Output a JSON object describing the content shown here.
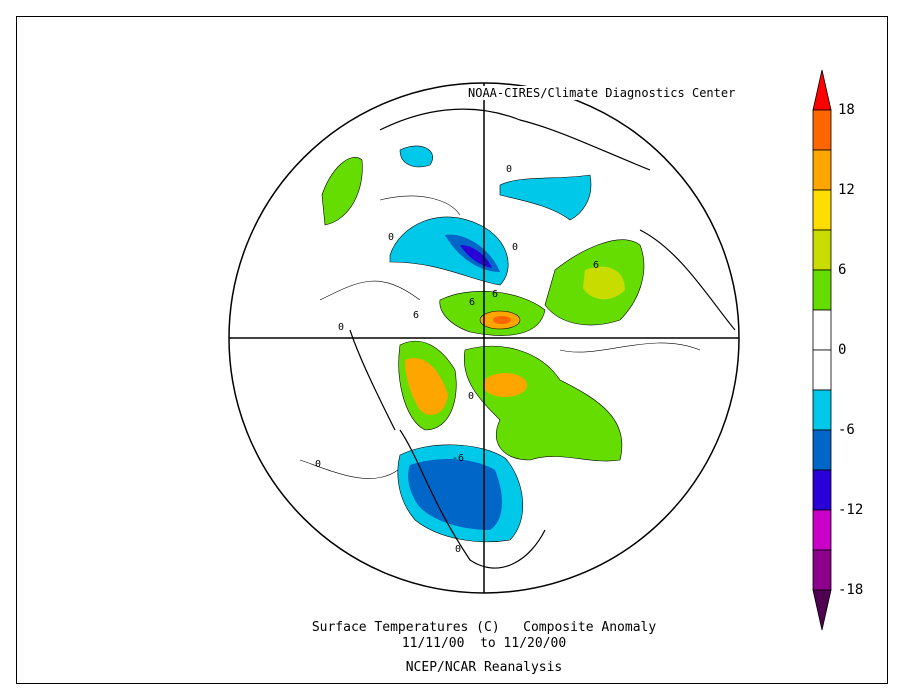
{
  "credit": "NOAA-CIRES/Climate Diagnostics Center",
  "title": {
    "line1": "Surface Temperatures (C)   Composite Anomaly",
    "line2": "11/11/00  to 11/20/00",
    "line3": "NCEP/NCAR Reanalysis"
  },
  "colorbar": {
    "labels": [
      "18",
      "12",
      "6",
      "0",
      "-6",
      "-12",
      "-18"
    ],
    "bands": [
      {
        "range": [
          15,
          18
        ],
        "color": "#ff6600"
      },
      {
        "range": [
          12,
          15
        ],
        "color": "#ffa500"
      },
      {
        "range": [
          9,
          12
        ],
        "color": "#ffdd00"
      },
      {
        "range": [
          6,
          9
        ],
        "color": "#c8dc00"
      },
      {
        "range": [
          3,
          6
        ],
        "color": "#66dd00"
      },
      {
        "range": [
          0,
          3
        ],
        "color": "#ffffff"
      },
      {
        "range": [
          -3,
          0
        ],
        "color": "#ffffff"
      },
      {
        "range": [
          -6,
          -3
        ],
        "color": "#00c8e8"
      },
      {
        "range": [
          -9,
          -6
        ],
        "color": "#0066c8"
      },
      {
        "range": [
          -12,
          -9
        ],
        "color": "#2a00d8"
      },
      {
        "range": [
          -15,
          -12
        ],
        "color": "#c800c8"
      },
      {
        "range": [
          -18,
          -15
        ],
        "color": "#8c008c"
      }
    ],
    "over_color": "#ff0000",
    "under_color": "#500050"
  },
  "contour_labels": [
    "0",
    "0",
    "0",
    "0",
    "0",
    "6",
    "6",
    "6",
    "6",
    "-6",
    "0",
    "0"
  ]
}
